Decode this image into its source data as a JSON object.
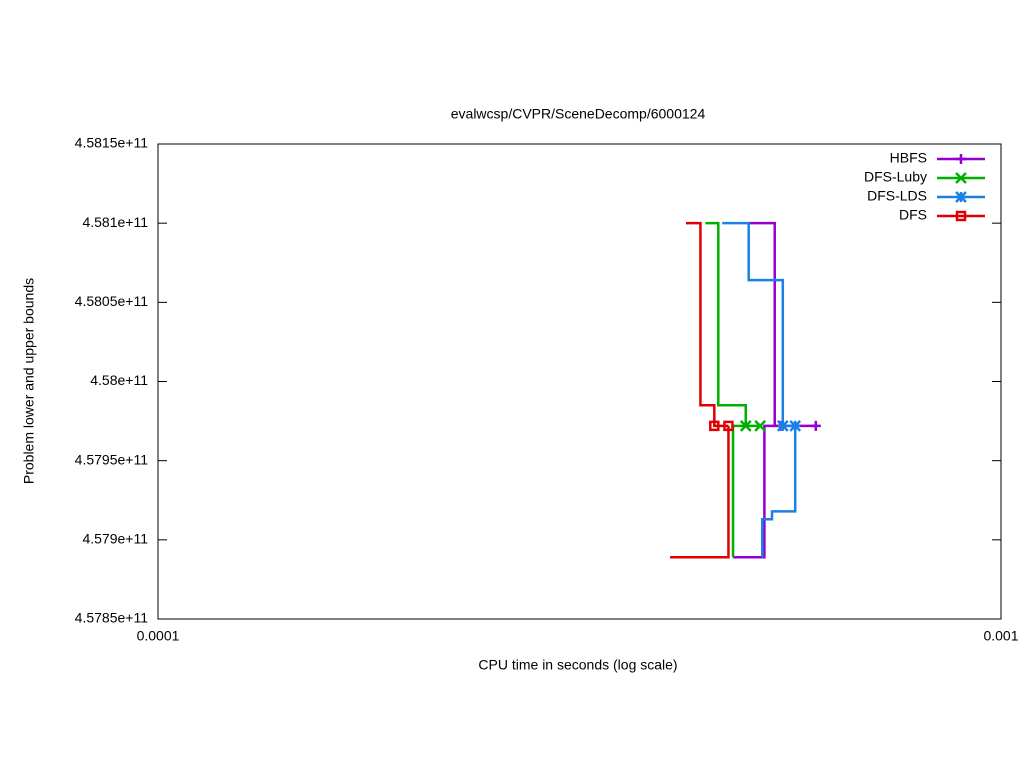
{
  "chart_data": {
    "type": "line",
    "title": "evalwcsp/CVPR/SceneDecomp/6000124",
    "x_label": "CPU time in seconds (log scale)",
    "y_label": "Problem lower and upper bounds",
    "x_log_scale": true,
    "xlim": [
      0.0001,
      0.001
    ],
    "xticks": [
      0.0001,
      0.001
    ],
    "ylim": [
      457850000000,
      458150000000
    ],
    "yticks": [
      {
        "value": 457850000000,
        "label": "4.5785e+11"
      },
      {
        "value": 457900000000,
        "label": "4.579e+11"
      },
      {
        "value": 457950000000,
        "label": "4.5795e+11"
      },
      {
        "value": 458000000000,
        "label": "4.58e+11"
      },
      {
        "value": 458050000000,
        "label": "4.5805e+11"
      },
      {
        "value": 458100000000,
        "label": "4.581e+11"
      },
      {
        "value": 458150000000,
        "label": "4.5815e+11"
      }
    ],
    "legend_position": "top-right",
    "series": [
      {
        "name": "HBFS",
        "color": "#9400d3",
        "marker": "plus",
        "x": [
          0.000502,
          0.000539,
          0.000539,
          0.000603,
          null,
          0.000481,
          0.000524,
          0.000524,
          0.000539
        ],
        "y": [
          458100000000,
          458100000000,
          457972000000,
          457972000000,
          null,
          457889000000,
          457889000000,
          457972000000,
          457972000000
        ],
        "marker_x": [
          0.000547,
          0.000603
        ],
        "marker_y": [
          457972000000,
          457972000000
        ]
      },
      {
        "name": "DFS-Luby",
        "color": "#00b000",
        "marker": "cross",
        "x": [
          0.000446,
          0.000462,
          0.000462,
          0.000498,
          0.000498,
          0.000518,
          null,
          0.000481,
          0.000481,
          0.000518
        ],
        "y": [
          458100000000,
          458100000000,
          457985000000,
          457985000000,
          457972000000,
          457972000000,
          null,
          457889000000,
          457972000000,
          457972000000
        ],
        "marker_x": [
          0.000498,
          0.000518
        ],
        "marker_y": [
          457972000000,
          457972000000
        ]
      },
      {
        "name": "DFS-LDS",
        "color": "#1a80e6",
        "marker": "star",
        "x": [
          0.000467,
          0.000502,
          0.000502,
          0.000551,
          0.000551,
          0.00057,
          null,
          0.000521,
          0.000521,
          0.000535,
          0.000535,
          0.00057,
          0.00057
        ],
        "y": [
          458100000000,
          458100000000,
          458064000000,
          458064000000,
          457972000000,
          457972000000,
          null,
          457889000000,
          457913000000,
          457913000000,
          457918000000,
          457918000000,
          457972000000
        ],
        "marker_x": [
          0.000551,
          0.00057
        ],
        "marker_y": [
          457972000000,
          457972000000
        ]
      },
      {
        "name": "DFS",
        "color": "#e00000",
        "marker": "square",
        "x": [
          0.000423,
          0.00044,
          0.00044,
          0.000457,
          0.000457,
          0.000475,
          null,
          0.000405,
          0.000475,
          0.000475
        ],
        "y": [
          458100000000,
          458100000000,
          457985000000,
          457985000000,
          457972000000,
          457972000000,
          null,
          457889000000,
          457889000000,
          457972000000
        ],
        "marker_x": [
          0.000457,
          0.000475
        ],
        "marker_y": [
          457972000000,
          457972000000
        ]
      }
    ]
  }
}
